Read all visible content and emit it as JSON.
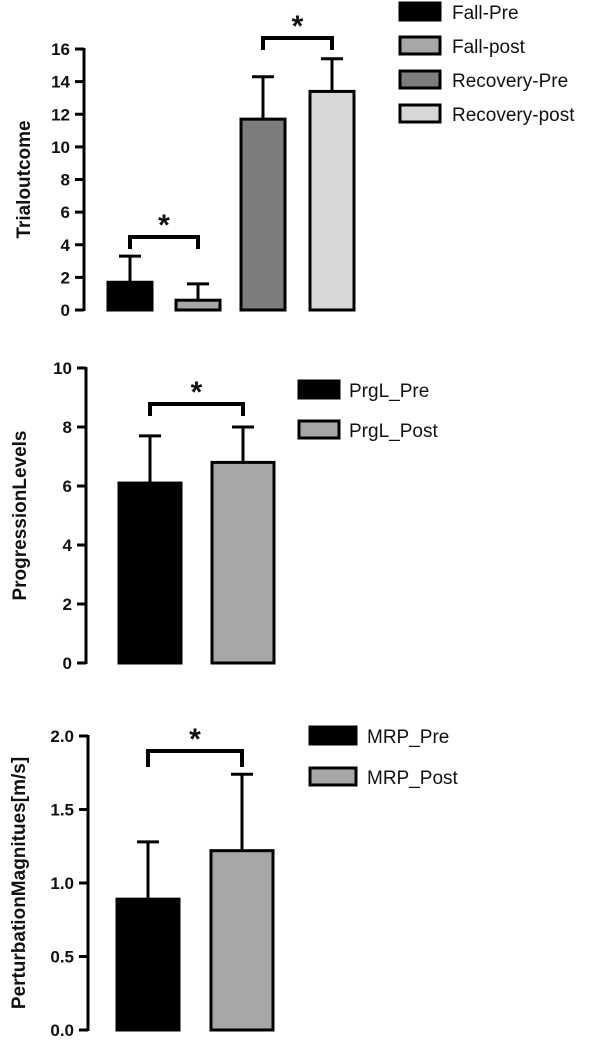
{
  "chart_data": [
    {
      "type": "bar",
      "ylabel": "Trialoutcome",
      "ylim": [
        0,
        16
      ],
      "yticks": [
        "0",
        "2",
        "4",
        "6",
        "8",
        "10",
        "12",
        "14",
        "16"
      ],
      "legend_position": "right",
      "series": [
        {
          "name": "Fall-Pre",
          "value": 1.7,
          "error": 1.6,
          "color": "#000000"
        },
        {
          "name": "Fall-post",
          "value": 0.6,
          "error": 1.0,
          "color": "#a7a7a9"
        },
        {
          "name": "Recovery-Pre",
          "value": 11.7,
          "error": 2.6,
          "color": "#7d7d7f"
        },
        {
          "name": "Recovery-post",
          "value": 13.4,
          "error": 2.0,
          "color": "#d7d7d7"
        }
      ],
      "significance": [
        {
          "between": [
            "Fall-Pre",
            "Fall-post"
          ],
          "label": "*"
        },
        {
          "between": [
            "Recovery-Pre",
            "Recovery-post"
          ],
          "label": "*"
        }
      ]
    },
    {
      "type": "bar",
      "ylabel": "ProgressionLevels",
      "ylim": [
        0,
        10
      ],
      "yticks": [
        "0",
        "2",
        "4",
        "6",
        "8",
        "10"
      ],
      "legend_position": "right",
      "series": [
        {
          "name": "PrgL_Pre",
          "value": 6.1,
          "error": 1.6,
          "color": "#000000"
        },
        {
          "name": "PrgL_Post",
          "value": 6.8,
          "error": 1.2,
          "color": "#a7a7a9"
        }
      ],
      "significance": [
        {
          "between": [
            "PrgL_Pre",
            "PrgL_Post"
          ],
          "label": "*"
        }
      ]
    },
    {
      "type": "bar",
      "ylabel": "PerturbationMagnitues[m/s]",
      "ylim": [
        0,
        2.0
      ],
      "yticks": [
        "0.0",
        "0.5",
        "1.0",
        "1.5",
        "2.0"
      ],
      "legend_position": "right",
      "series": [
        {
          "name": "MRP_Pre",
          "value": 0.89,
          "error": 0.39,
          "color": "#000000"
        },
        {
          "name": "MRP_Post",
          "value": 1.22,
          "error": 0.52,
          "color": "#a7a7a9"
        }
      ],
      "significance": [
        {
          "between": [
            "MRP_Pre",
            "MRP_Post"
          ],
          "label": "*"
        }
      ]
    }
  ]
}
